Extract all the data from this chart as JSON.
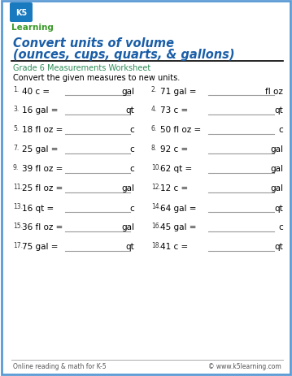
{
  "title_line1": "Convert units of volume",
  "title_line2": "(ounces, cups, quarts, & gallons)",
  "subtitle": "Grade 6 Measurements Worksheet",
  "instruction": "Convert the given measures to new units.",
  "title_color": "#1a5ea8",
  "subtitle_color": "#2e8b57",
  "border_color": "#5b9bd5",
  "background_color": "#ffffff",
  "footer_left": "Online reading & math for K-5",
  "footer_right": "© www.k5learning.com",
  "problems": [
    {
      "num": "1",
      "question": "40 c =",
      "unit": "gal"
    },
    {
      "num": "2",
      "question": "71 gal =",
      "unit": "fl oz"
    },
    {
      "num": "3",
      "question": "16 gal =",
      "unit": "qt"
    },
    {
      "num": "4",
      "question": "73 c =",
      "unit": "qt"
    },
    {
      "num": "5",
      "question": "18 fl oz =",
      "unit": "c"
    },
    {
      "num": "6",
      "question": "50 fl oz =",
      "unit": "c"
    },
    {
      "num": "7",
      "question": "25 gal =",
      "unit": "c"
    },
    {
      "num": "8",
      "question": "92 c =",
      "unit": "gal"
    },
    {
      "num": "9",
      "question": "39 fl oz =",
      "unit": "c"
    },
    {
      "num": "10",
      "question": "62 qt =",
      "unit": "gal"
    },
    {
      "num": "11",
      "question": "25 fl oz =",
      "unit": "gal"
    },
    {
      "num": "12",
      "question": "12 c =",
      "unit": "gal"
    },
    {
      "num": "13",
      "question": "16 qt =",
      "unit": "c"
    },
    {
      "num": "14",
      "question": "64 gal =",
      "unit": "qt"
    },
    {
      "num": "15",
      "question": "36 fl oz =",
      "unit": "gal"
    },
    {
      "num": "16",
      "question": "45 gal =",
      "unit": "c"
    },
    {
      "num": "17",
      "question": "75 gal =",
      "unit": "qt"
    },
    {
      "num": "18",
      "question": "41 c =",
      "unit": "qt"
    }
  ]
}
